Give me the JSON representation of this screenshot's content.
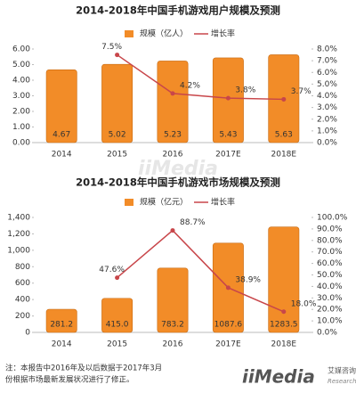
{
  "chart_data": [
    {
      "type": "combo",
      "title": "2014-2018年中国手机游戏用户规模及预测",
      "categories": [
        "2014",
        "2015",
        "2016",
        "2017E",
        "2018E"
      ],
      "series": [
        {
          "name": "规模（亿人）",
          "type": "bar",
          "color": "#f28c28",
          "values": [
            4.67,
            5.02,
            5.23,
            5.43,
            5.63
          ]
        },
        {
          "name": "增长率",
          "type": "line",
          "axis": "y2",
          "color": "#c8464a",
          "values": [
            null,
            7.5,
            4.2,
            3.8,
            3.7
          ],
          "value_labels": [
            null,
            "7.5%",
            "4.2%",
            "3.8%",
            "3.7%"
          ]
        }
      ],
      "ylim": [
        0,
        6
      ],
      "yticks": [
        {
          "value": 0,
          "label": "0.00"
        },
        {
          "value": 1,
          "label": "1.00"
        },
        {
          "value": 2,
          "label": "2.00"
        },
        {
          "value": 3,
          "label": "3.00"
        },
        {
          "value": 4,
          "label": "4.00"
        },
        {
          "value": 5,
          "label": "5.00"
        },
        {
          "value": 6,
          "label": "6.00"
        }
      ],
      "y2lim": [
        0,
        8
      ],
      "y2ticks": [
        {
          "value": 0,
          "label": "0.0%"
        },
        {
          "value": 1,
          "label": "1.0%"
        },
        {
          "value": 2,
          "label": "2.0%"
        },
        {
          "value": 3,
          "label": "3.0%"
        },
        {
          "value": 4,
          "label": "4.0%"
        },
        {
          "value": 5,
          "label": "5.0%"
        },
        {
          "value": 6,
          "label": "6.0%"
        },
        {
          "value": 7,
          "label": "7.0%"
        },
        {
          "value": 8,
          "label": "8.0%"
        }
      ],
      "grid": false
    },
    {
      "type": "combo",
      "title": "2014-2018年中国手机游戏市场规模及预测",
      "categories": [
        "2014",
        "2015",
        "2016",
        "2017E",
        "2018E"
      ],
      "series": [
        {
          "name": "规模（亿元）",
          "type": "bar",
          "color": "#f28c28",
          "values": [
            281.2,
            415.0,
            783.2,
            1087.6,
            1283.5
          ],
          "value_labels": [
            "281.2",
            "415.0",
            "783.2",
            "1087.6",
            "1283.5"
          ]
        },
        {
          "name": "增长率",
          "type": "line",
          "axis": "y2",
          "color": "#c8464a",
          "values": [
            null,
            47.6,
            88.7,
            38.9,
            18.0
          ],
          "value_labels": [
            null,
            "47.6%",
            "88.7%",
            "38.9%",
            "18.0%"
          ]
        }
      ],
      "ylim": [
        0,
        1400
      ],
      "yticks": [
        0,
        200,
        400,
        600,
        800,
        {
          "value": 1000,
          "label": "1,000"
        },
        {
          "value": 1200,
          "label": "1,200"
        },
        {
          "value": 1400,
          "label": "1,400"
        }
      ],
      "y2lim": [
        0,
        100
      ],
      "y2ticks": [
        {
          "value": 0,
          "label": "0.0%"
        },
        {
          "value": 10,
          "label": "10.0%"
        },
        {
          "value": 20,
          "label": "20.0%"
        },
        {
          "value": 30,
          "label": "30.0%"
        },
        {
          "value": 40,
          "label": "40.0%"
        },
        {
          "value": 50,
          "label": "50.0%"
        },
        {
          "value": 60,
          "label": "60.0%"
        },
        {
          "value": 70,
          "label": "70.0%"
        },
        {
          "value": 80,
          "label": "80.0%"
        },
        {
          "value": 90,
          "label": "90.0%"
        },
        {
          "value": 100,
          "label": "100.0%"
        }
      ],
      "grid": false
    }
  ],
  "footnote": [
    "注：本报告中2016年及以后数据于2017年3月",
    "份根据市场最新发展状况进行了修正。"
  ],
  "brand": {
    "logo": "iiMedia",
    "cn": "艾媒咨询",
    "en": "Research"
  }
}
